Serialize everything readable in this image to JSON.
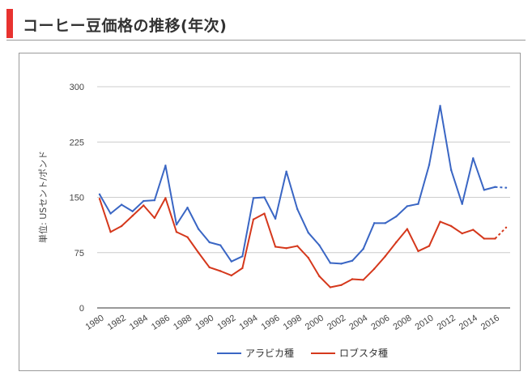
{
  "page": {
    "title": "コーヒー豆価格の推移(年次)",
    "accent_color": "#e8322f"
  },
  "chart_data": {
    "type": "line",
    "title": "",
    "xlabel": "",
    "ylabel": "単位: USセント/ポンド",
    "ylim": [
      0,
      300
    ],
    "yticks": [
      0,
      75,
      150,
      225,
      300
    ],
    "grid": true,
    "legend_position": "bottom",
    "x": [
      1980,
      1981,
      1982,
      1983,
      1984,
      1985,
      1986,
      1987,
      1988,
      1989,
      1990,
      1991,
      1992,
      1993,
      1994,
      1995,
      1996,
      1997,
      1998,
      1999,
      2000,
      2001,
      2002,
      2003,
      2004,
      2005,
      2006,
      2007,
      2008,
      2009,
      2010,
      2011,
      2012,
      2013,
      2014,
      2015,
      2016,
      2017
    ],
    "xtick_labels": [
      "1980",
      "1982",
      "1984",
      "1986",
      "1988",
      "1990",
      "1992",
      "1994",
      "1996",
      "1998",
      "2000",
      "2002",
      "2004",
      "2006",
      "2008",
      "2010",
      "2012",
      "2014",
      "2016"
    ],
    "series": [
      {
        "name": "アラビカ種",
        "color": "#3a66c4",
        "values": [
          154,
          128,
          140,
          131,
          145,
          146,
          193,
          113,
          136,
          107,
          89,
          85,
          63,
          70,
          149,
          150,
          121,
          185,
          134,
          102,
          85,
          61,
          60,
          64,
          80,
          115,
          115,
          124,
          138,
          141,
          194,
          274,
          187,
          141,
          203,
          160,
          164,
          163
        ],
        "last_segment_dashed": true
      },
      {
        "name": "ロブスタ種",
        "color": "#d5381c",
        "values": [
          148,
          103,
          111,
          125,
          139,
          122,
          149,
          103,
          96,
          75,
          55,
          50,
          44,
          54,
          120,
          128,
          83,
          81,
          84,
          68,
          43,
          28,
          31,
          39,
          38,
          53,
          70,
          89,
          107,
          77,
          84,
          117,
          111,
          101,
          106,
          94,
          94,
          109
        ],
        "last_segment_dashed": true
      }
    ]
  }
}
